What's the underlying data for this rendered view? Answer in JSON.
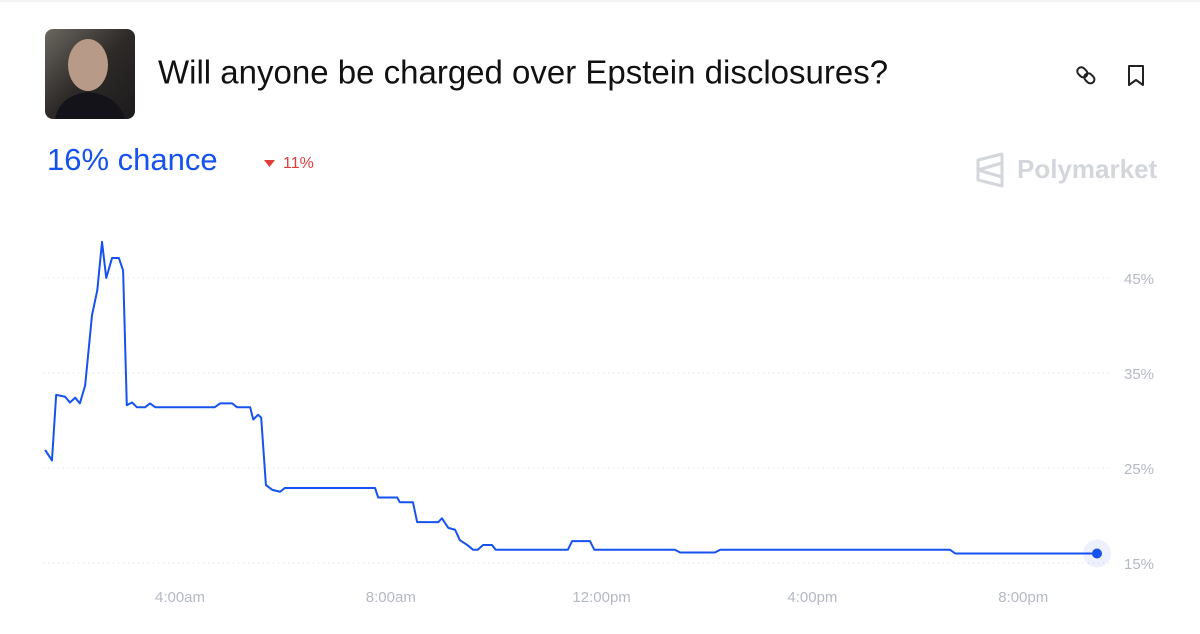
{
  "header": {
    "title": "Will anyone be charged over Epstein disclosures?",
    "chance": "16% chance",
    "change": "11%",
    "brand": "Polymarket"
  },
  "chart_data": {
    "type": "line",
    "x": [
      1.44,
      1.57,
      1.65,
      1.82,
      1.91,
      2.01,
      2.1,
      2.2,
      2.33,
      2.43,
      2.52,
      2.6,
      2.71,
      2.84,
      2.92,
      2.99,
      3.09,
      3.18,
      3.34,
      3.43,
      3.53,
      4.66,
      4.76,
      4.99,
      5.08,
      5.33,
      5.39,
      5.48,
      5.54,
      5.63,
      5.75,
      5.9,
      5.99,
      7.7,
      7.76,
      8.12,
      8.17,
      8.42,
      8.5,
      8.9,
      8.97,
      9.09,
      9.22,
      9.31,
      9.45,
      9.56,
      9.65,
      9.75,
      9.92,
      9.99,
      11.36,
      11.44,
      11.78,
      11.86,
      13.39,
      13.49,
      14.15,
      14.25,
      18.61,
      18.71,
      21.4
    ],
    "series": [
      {
        "color": "#1652f0",
        "values": [
          26.9,
          25.8,
          32.7,
          32.5,
          31.9,
          32.4,
          31.8,
          33.7,
          41.1,
          43.7,
          48.8,
          45,
          47.1,
          47.1,
          45.8,
          31.6,
          31.9,
          31.4,
          31.4,
          31.8,
          31.4,
          31.4,
          31.8,
          31.8,
          31.4,
          31.4,
          30.1,
          30.6,
          30.3,
          23.2,
          22.7,
          22.5,
          22.9,
          22.9,
          21.9,
          21.9,
          21.4,
          21.4,
          19.3,
          19.3,
          19.7,
          18.7,
          18.5,
          17.4,
          16.9,
          16.4,
          16.4,
          16.9,
          16.9,
          16.4,
          16.4,
          17.3,
          17.3,
          16.4,
          16.4,
          16.1,
          16.1,
          16.4,
          16.4,
          16,
          16
        ]
      }
    ],
    "xlim": [
      1.4,
      21.4
    ],
    "xticks": [
      {
        "value": 4,
        "label": "4:00am"
      },
      {
        "value": 8,
        "label": "8:00am"
      },
      {
        "value": 12,
        "label": "12:00pm"
      },
      {
        "value": 16,
        "label": "4:00pm"
      },
      {
        "value": 20,
        "label": "8:00pm"
      }
    ],
    "ylim": [
      13,
      50
    ],
    "yticks": [
      {
        "value": 15,
        "label": "15%"
      },
      {
        "value": 25,
        "label": "25%"
      },
      {
        "value": 35,
        "label": "35%"
      },
      {
        "value": 45,
        "label": "45%"
      }
    ],
    "grid": true
  }
}
